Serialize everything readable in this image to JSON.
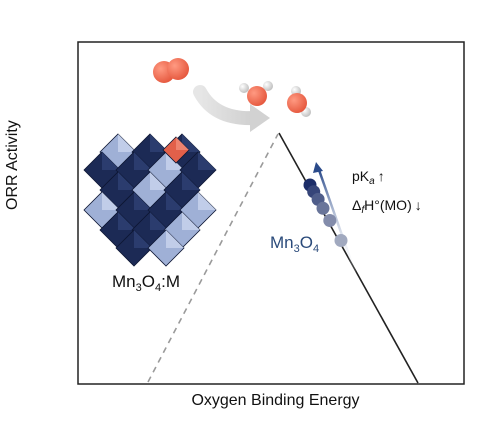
{
  "axes": {
    "x_label": "Oxygen Binding Energy",
    "y_label": "ORR Activity"
  },
  "labels": {
    "material_label": {
      "base": "Mn",
      "sub1": "3",
      "mid": "O",
      "sub2": "4",
      "suffix": ":M"
    },
    "series_label": {
      "base": "Mn",
      "sub1": "3",
      "mid": "O",
      "sub2": "4"
    },
    "trend_pka": {
      "text": "pK",
      "sub": "a",
      "arrow": "↑"
    },
    "trend_enthalpy": {
      "prefix": "Δ",
      "sub": "f",
      "text": "H°(MO)",
      "arrow": "↓"
    }
  },
  "colors": {
    "frame": "#222222",
    "volcano_line": "#222222",
    "dashed_line": "#9a9a9a",
    "crystal_dark": "#1c2a55",
    "crystal_light": "#9fb0d6",
    "dopant": "#e2604a",
    "oxygen_atom": "#ef6a50",
    "hydrogen_atom": "#d9d9d9",
    "series_text": "#2a4a7a",
    "point_dark": "#1c2d68",
    "point_light": "#c7ccd8",
    "gradient_arrow_top": "#2a4a8a"
  },
  "points": [
    {
      "t": 0.0,
      "shade": 1.0
    },
    {
      "t": 0.06,
      "shade": 0.85
    },
    {
      "t": 0.13,
      "shade": 0.7
    },
    {
      "t": 0.21,
      "shade": 0.55
    },
    {
      "t": 0.32,
      "shade": 0.4
    },
    {
      "t": 0.5,
      "shade": 0.22
    }
  ]
}
